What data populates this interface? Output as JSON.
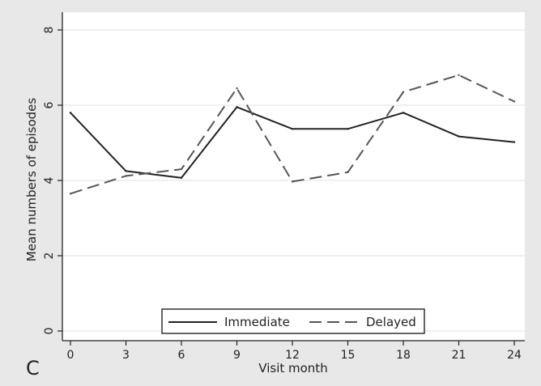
{
  "chart_data": {
    "type": "line",
    "panel_label": "C",
    "xlabel": "Visit month",
    "ylabel": "Mean numbers of episodes",
    "x": [
      0,
      3,
      6,
      9,
      12,
      15,
      18,
      21,
      24
    ],
    "x_ticks": [
      "0",
      "3",
      "6",
      "9",
      "12",
      "15",
      "18",
      "21",
      "24"
    ],
    "y_ticks": [
      "0",
      "2",
      "4",
      "6",
      "8"
    ],
    "xlim": [
      0,
      24
    ],
    "ylim": [
      0,
      8
    ],
    "grid": "horizontal",
    "legend_position": "bottom",
    "series": [
      {
        "name": "Immediate",
        "style": "solid",
        "color": "#222222",
        "values": [
          5.8,
          4.25,
          4.07,
          5.95,
          5.37,
          5.37,
          5.8,
          5.17,
          5.02
        ]
      },
      {
        "name": "Delayed",
        "style": "dashed",
        "color": "#555555",
        "values": [
          3.65,
          4.12,
          4.3,
          6.45,
          3.97,
          4.22,
          6.35,
          6.8,
          6.1
        ]
      }
    ]
  }
}
